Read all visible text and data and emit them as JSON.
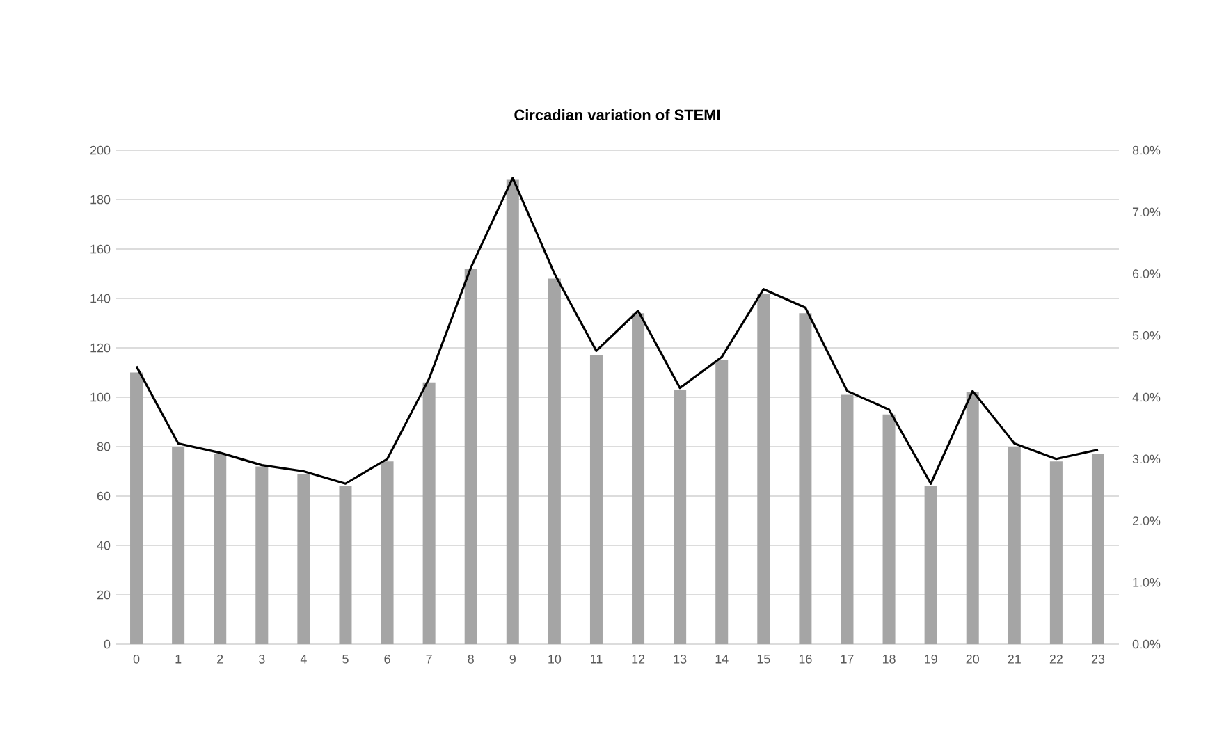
{
  "chart_data": {
    "type": "bar",
    "title": "Circadian variation of STEMI",
    "categories": [
      "0",
      "1",
      "2",
      "3",
      "4",
      "5",
      "6",
      "7",
      "8",
      "9",
      "10",
      "11",
      "12",
      "13",
      "14",
      "15",
      "16",
      "17",
      "18",
      "19",
      "20",
      "21",
      "22",
      "23"
    ],
    "series": [
      {
        "type": "bar",
        "color": "#a5a5a5",
        "values": [
          110,
          80,
          77,
          72,
          69,
          64,
          74,
          106,
          152,
          188,
          148,
          117,
          134,
          103,
          115,
          142,
          134,
          101,
          93,
          64,
          102,
          80,
          74,
          77
        ]
      },
      {
        "type": "line",
        "axis": "y2",
        "color": "#000000",
        "values": [
          4.5,
          3.25,
          3.1,
          2.9,
          2.8,
          2.6,
          3.0,
          4.3,
          6.1,
          7.55,
          6.0,
          4.75,
          5.4,
          4.15,
          4.65,
          5.75,
          5.45,
          4.1,
          3.8,
          2.6,
          4.1,
          3.25,
          3.0,
          3.15
        ]
      }
    ],
    "ylim": [
      0,
      200
    ],
    "yticks": [
      0,
      20,
      40,
      60,
      80,
      100,
      120,
      140,
      160,
      180,
      200
    ],
    "y2lim": [
      0,
      8
    ],
    "y2ticks": [
      {
        "value": 0,
        "label": "0.0%"
      },
      {
        "value": 1,
        "label": "1.0%"
      },
      {
        "value": 2,
        "label": "2.0%"
      },
      {
        "value": 3,
        "label": "3.0%"
      },
      {
        "value": 4,
        "label": "4.0%"
      },
      {
        "value": 5,
        "label": "5.0%"
      },
      {
        "value": 6,
        "label": "6.0%"
      },
      {
        "value": 7,
        "label": "7.0%"
      },
      {
        "value": 8,
        "label": "8.0%"
      }
    ],
    "grid": "y"
  }
}
